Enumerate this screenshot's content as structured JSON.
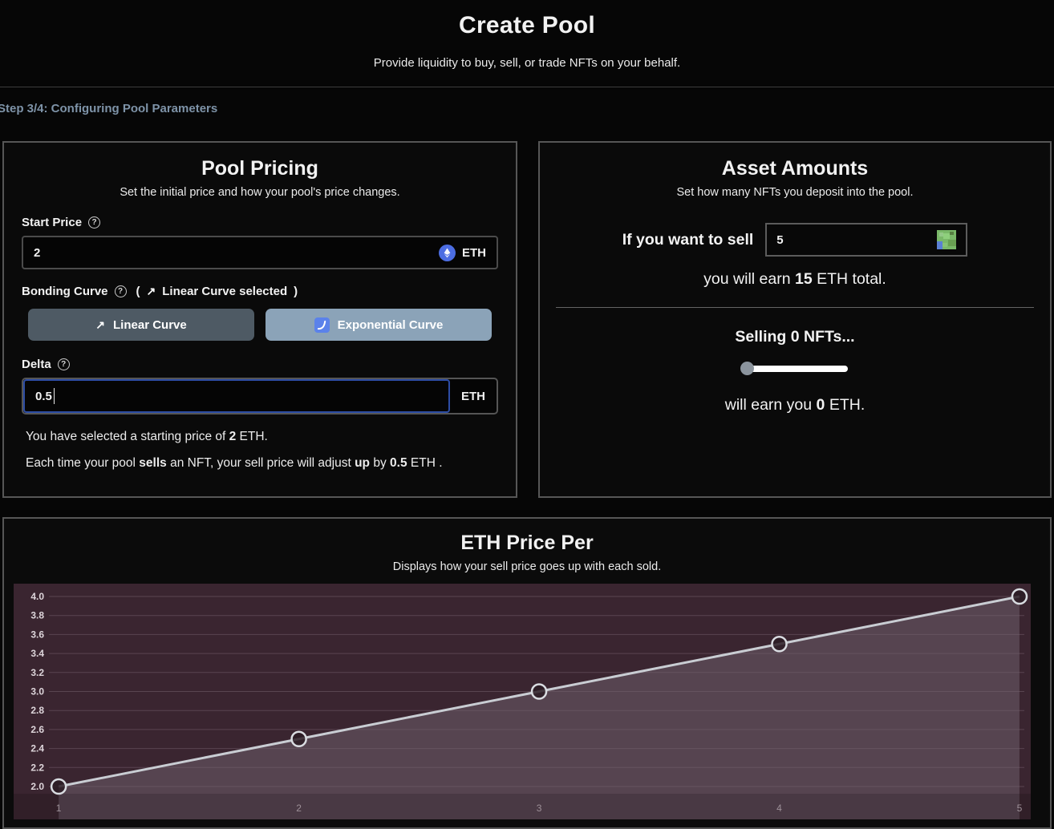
{
  "header": {
    "title": "Create Pool",
    "subtitle": "Provide liquidity to buy, sell, or trade NFTs on your behalf."
  },
  "step_label": "Step 3/4: Configuring Pool Parameters",
  "icons": {
    "help": "?",
    "trend_up_arrow": "↗"
  },
  "pool_pricing": {
    "title": "Pool Pricing",
    "subtitle": "Set the initial price and how your pool's price changes.",
    "start_price_label": "Start Price",
    "start_price_value": "2",
    "start_price_unit": "ETH",
    "bonding_curve_label": "Bonding Curve",
    "bonding_note_open": "(",
    "bonding_note_text": "Linear Curve selected",
    "bonding_note_close": ")",
    "linear_button_label": "Linear Curve",
    "exponential_button_label": "Exponential Curve",
    "delta_label": "Delta",
    "delta_value": "0.5",
    "delta_unit": "ETH",
    "summary_line1": {
      "pre": "You have selected a starting price of ",
      "bold": "2",
      "post": " ETH."
    },
    "summary_line2": {
      "pre": "Each time your pool ",
      "bold1": "sells",
      "mid1": " an NFT, your sell price will adjust ",
      "bold2": "up",
      "mid2": " by ",
      "bold3": "0.5",
      "post": " ETH ."
    }
  },
  "asset_amounts": {
    "title": "Asset Amounts",
    "subtitle": "Set how many NFTs you deposit into the pool.",
    "sell_prompt": "If you want to sell",
    "sell_value": "5",
    "earn": {
      "pre": "you will earn ",
      "bold": "15",
      "post": " ETH total."
    },
    "selling": {
      "pre": "Selling ",
      "bold": "0",
      "post": " NFTs..."
    },
    "slider_value": 0,
    "will_earn": {
      "pre": "will earn you ",
      "bold": "0",
      "post": " ETH."
    }
  },
  "chart": {
    "title": "ETH Price Per",
    "subtitle": "Displays how your sell price goes up with each sold."
  },
  "chart_data": {
    "type": "line",
    "title": "ETH Price Per",
    "subtitle": "Displays how your sell price goes up with each sold.",
    "x": [
      1,
      2,
      3,
      4,
      5
    ],
    "values": [
      2.0,
      2.5,
      3.0,
      3.5,
      4.0
    ],
    "x_ticks": [
      1,
      2,
      3,
      4,
      5
    ],
    "y_ticks": [
      2.0,
      2.2,
      2.4,
      2.6,
      2.8,
      3.0,
      3.2,
      3.4,
      3.6,
      3.8,
      4.0
    ],
    "xlim": [
      1,
      5
    ],
    "ylim": [
      2.0,
      4.0
    ],
    "grid": true,
    "legend": false,
    "marker": "open-circle",
    "colors": {
      "plot_bg": "#3a2530",
      "area_fill": "#564450",
      "grid": "#73616b",
      "line": "#c9cdd3",
      "marker_fill": "#2c1c24",
      "y_tick": "#ddd5da",
      "x_tick": "#9e9199"
    }
  },
  "colors": {
    "step_text": "#7e93a8",
    "focus_blue": "#2d4da5",
    "linear_button_bg": "#4e5a64",
    "exponential_button_bg": "#8ba3b8",
    "eth_coin_blue": "#4c6de2"
  }
}
